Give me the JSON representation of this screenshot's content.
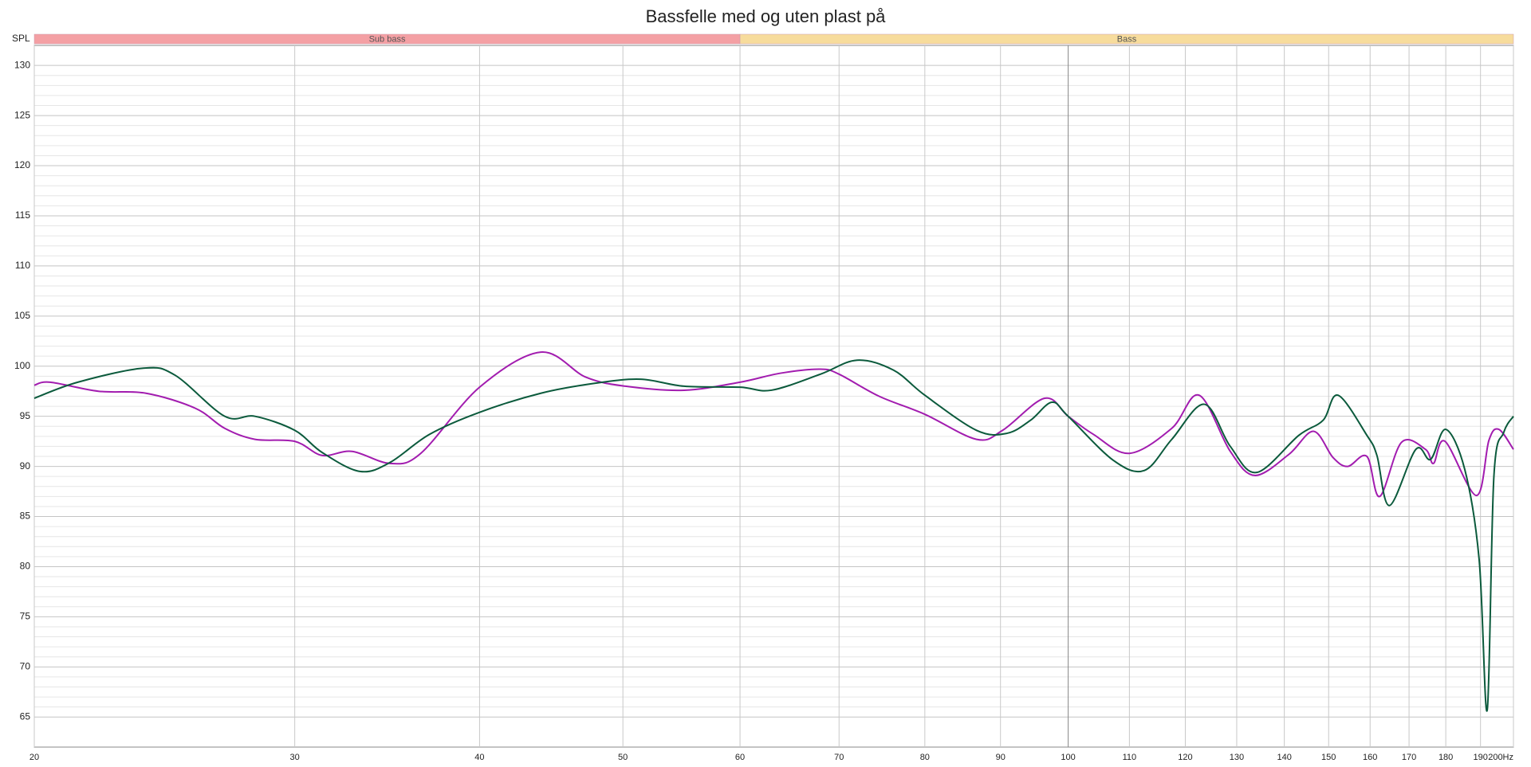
{
  "chart_data": {
    "type": "line",
    "title": "Bassfelle med og uten plast på",
    "ylabel": "SPL",
    "log_x": true,
    "grid": true,
    "xlim": [
      20,
      200
    ],
    "xticks": [
      20,
      30,
      40,
      50,
      60,
      70,
      80,
      90,
      100,
      110,
      120,
      130,
      140,
      150,
      160,
      170,
      180,
      190,
      {
        "value": 200,
        "label": "200Hz"
      }
    ],
    "ylim": [
      62,
      132
    ],
    "yticks": [
      65,
      70,
      75,
      80,
      85,
      90,
      95,
      100,
      105,
      110,
      115,
      120,
      125,
      130
    ],
    "bands": [
      {
        "label": "Sub bass",
        "from": 20,
        "to": 60,
        "color": "#f4a0a4"
      },
      {
        "label": "Bass",
        "from": 60,
        "to": 200,
        "color": "#f7dc9c"
      }
    ],
    "series": [
      {
        "color": "#a21caf",
        "x": [
          20,
          20.5,
          22.1,
          23.8,
          25.7,
          26.9,
          28.2,
          30,
          31.3,
          32.8,
          34.8,
          36.5,
          40,
          44,
          47.2,
          50.2,
          55,
          60,
          63.9,
          68,
          70,
          74.5,
          80,
          86.7,
          90.3,
          96.4,
          100,
          104,
          110,
          117.5,
          122.6,
          128.7,
          133.7,
          141,
          146.5,
          151,
          154.5,
          159.2,
          162.4,
          168,
          174.4,
          176.6,
          179.8,
          188.8,
          192.5,
          195.5,
          200
        ],
        "values": [
          98.1,
          98.4,
          97.5,
          97.3,
          95.8,
          93.8,
          92.7,
          92.5,
          91.1,
          91.5,
          90.3,
          91.3,
          97.9,
          101.4,
          98.9,
          98.0,
          97.6,
          98.4,
          99.3,
          99.7,
          99.2,
          97.0,
          95.2,
          92.7,
          93.6,
          96.8,
          95.0,
          93.2,
          91.3,
          93.8,
          97.1,
          91.5,
          89.1,
          91.2,
          93.5,
          90.9,
          90.0,
          91.0,
          87.0,
          92.4,
          91.7,
          90.3,
          92.5,
          87.1,
          92.6,
          93.7,
          91.7
        ]
      },
      {
        "color": "#0b5a3c",
        "x": [
          20,
          21.4,
          23.7,
          24.9,
          26.9,
          28.2,
          30,
          31.3,
          33.2,
          34.8,
          37,
          40,
          44,
          47.9,
          51.4,
          55,
          60,
          63,
          68,
          72,
          76.2,
          80,
          86.7,
          90.9,
          94.3,
          97.5,
          100,
          107.3,
          112.6,
          117.5,
          123.6,
          128.7,
          134.1,
          143.2,
          148.7,
          152.2,
          159.2,
          161.7,
          164.9,
          171.8,
          175.8,
          180,
          185.4,
          189.6,
          192,
          194,
          197,
          200
        ],
        "values": [
          96.8,
          98.4,
          99.8,
          99.1,
          95.0,
          95.0,
          93.6,
          91.4,
          89.5,
          90.4,
          93.2,
          95.4,
          97.3,
          98.3,
          98.7,
          98.0,
          97.9,
          97.6,
          99.2,
          100.6,
          99.6,
          97.1,
          93.6,
          93.3,
          94.6,
          96.4,
          95.0,
          90.6,
          89.6,
          92.7,
          96.2,
          92.0,
          89.4,
          93.1,
          94.6,
          97.1,
          93.1,
          91.1,
          86.1,
          91.7,
          90.7,
          93.7,
          89.7,
          80.7,
          65.7,
          89.0,
          93.4,
          95.0
        ]
      }
    ]
  }
}
